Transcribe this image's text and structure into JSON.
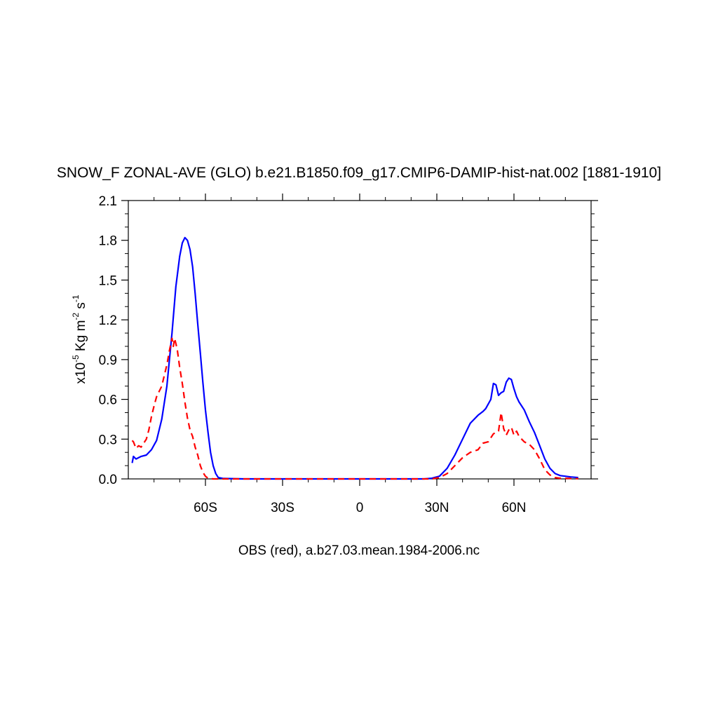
{
  "chart_data": {
    "type": "line",
    "title": "SNOW_F ZONAL-AVE (GLO) b.e21.B1850.f09_g17.CMIP6-DAMIP-hist-nat.002 [1881-1910]",
    "footer": "OBS (red), a.b27.03.mean.1984-2006.nc",
    "ylabel": {
      "prefix": "x10",
      "exp": "-5",
      "mid": " Kg m",
      "exp2": "-2",
      "mid2": " s",
      "exp3": "-1"
    },
    "xlim": [
      -90,
      90
    ],
    "ylim": [
      0,
      2.1
    ],
    "x_ticks": [
      {
        "value": -60,
        "label": "60S"
      },
      {
        "value": -30,
        "label": "30S"
      },
      {
        "value": 0,
        "label": "0"
      },
      {
        "value": 30,
        "label": "30N"
      },
      {
        "value": 60,
        "label": "60N"
      }
    ],
    "y_ticks": [
      {
        "value": 0.0,
        "label": "0.0"
      },
      {
        "value": 0.3,
        "label": "0.3"
      },
      {
        "value": 0.6,
        "label": "0.6"
      },
      {
        "value": 0.9,
        "label": "0.9"
      },
      {
        "value": 1.2,
        "label": "1.2"
      },
      {
        "value": 1.5,
        "label": "1.5"
      },
      {
        "value": 1.8,
        "label": "1.8"
      },
      {
        "value": 2.1,
        "label": "2.1"
      }
    ],
    "series": [
      {
        "color": "#0000ff",
        "dash": "solid",
        "points": [
          [
            -88.5,
            0.12
          ],
          [
            -88,
            0.17
          ],
          [
            -87,
            0.15
          ],
          [
            -85,
            0.17
          ],
          [
            -83,
            0.18
          ],
          [
            -81,
            0.22
          ],
          [
            -79,
            0.29
          ],
          [
            -77,
            0.45
          ],
          [
            -75,
            0.7
          ],
          [
            -73,
            1.1
          ],
          [
            -71.5,
            1.45
          ],
          [
            -70,
            1.68
          ],
          [
            -69,
            1.78
          ],
          [
            -68,
            1.82
          ],
          [
            -67,
            1.8
          ],
          [
            -66,
            1.73
          ],
          [
            -65,
            1.6
          ],
          [
            -64,
            1.4
          ],
          [
            -63,
            1.17
          ],
          [
            -62,
            0.95
          ],
          [
            -61,
            0.73
          ],
          [
            -60,
            0.52
          ],
          [
            -59,
            0.35
          ],
          [
            -58,
            0.2
          ],
          [
            -57,
            0.1
          ],
          [
            -56,
            0.04
          ],
          [
            -55,
            0.01
          ],
          [
            -53,
            0.003
          ],
          [
            -45,
            0.0
          ],
          [
            -30,
            0.0
          ],
          [
            0,
            0.0
          ],
          [
            25,
            0.0
          ],
          [
            28,
            0.005
          ],
          [
            31,
            0.02
          ],
          [
            34,
            0.08
          ],
          [
            37,
            0.18
          ],
          [
            40,
            0.3
          ],
          [
            43,
            0.42
          ],
          [
            46,
            0.48
          ],
          [
            48,
            0.51
          ],
          [
            49,
            0.53
          ],
          [
            51,
            0.6
          ],
          [
            52,
            0.72
          ],
          [
            53,
            0.71
          ],
          [
            54,
            0.63
          ],
          [
            55,
            0.65
          ],
          [
            56,
            0.66
          ],
          [
            57,
            0.73
          ],
          [
            58,
            0.76
          ],
          [
            59,
            0.75
          ],
          [
            60,
            0.68
          ],
          [
            61,
            0.62
          ],
          [
            62,
            0.58
          ],
          [
            63,
            0.55
          ],
          [
            64,
            0.52
          ],
          [
            66,
            0.43
          ],
          [
            68,
            0.35
          ],
          [
            70,
            0.25
          ],
          [
            72,
            0.15
          ],
          [
            74,
            0.08
          ],
          [
            76,
            0.04
          ],
          [
            78,
            0.025
          ],
          [
            80,
            0.02
          ],
          [
            82,
            0.015
          ],
          [
            85,
            0.01
          ]
        ]
      },
      {
        "color": "#ff0000",
        "dash": "dashed",
        "points": [
          [
            -88.5,
            0.29
          ],
          [
            -88,
            0.28
          ],
          [
            -87,
            0.23
          ],
          [
            -86,
            0.25
          ],
          [
            -85,
            0.24
          ],
          [
            -84,
            0.27
          ],
          [
            -83,
            0.3
          ],
          [
            -82,
            0.37
          ],
          [
            -81,
            0.47
          ],
          [
            -80,
            0.55
          ],
          [
            -79,
            0.62
          ],
          [
            -78,
            0.66
          ],
          [
            -77,
            0.7
          ],
          [
            -76,
            0.78
          ],
          [
            -75,
            0.86
          ],
          [
            -74,
            0.97
          ],
          [
            -73,
            1.06
          ],
          [
            -72.5,
            1.0
          ],
          [
            -72,
            1.06
          ],
          [
            -71,
            0.98
          ],
          [
            -70,
            0.84
          ],
          [
            -69,
            0.72
          ],
          [
            -68,
            0.58
          ],
          [
            -67,
            0.46
          ],
          [
            -66,
            0.37
          ],
          [
            -65,
            0.32
          ],
          [
            -64,
            0.24
          ],
          [
            -63,
            0.18
          ],
          [
            -62,
            0.1
          ],
          [
            -61,
            0.05
          ],
          [
            -60,
            0.02
          ],
          [
            -59,
            0.005
          ],
          [
            -57,
            0.0
          ],
          [
            -45,
            0.0
          ],
          [
            0,
            0.0
          ],
          [
            28,
            0.0
          ],
          [
            31,
            0.01
          ],
          [
            34,
            0.04
          ],
          [
            37,
            0.1
          ],
          [
            40,
            0.16
          ],
          [
            43,
            0.2
          ],
          [
            46,
            0.22
          ],
          [
            48,
            0.27
          ],
          [
            50,
            0.28
          ],
          [
            52,
            0.34
          ],
          [
            54,
            0.36
          ],
          [
            55,
            0.5
          ],
          [
            56,
            0.38
          ],
          [
            57,
            0.33
          ],
          [
            58,
            0.37
          ],
          [
            59,
            0.39
          ],
          [
            60,
            0.33
          ],
          [
            61,
            0.36
          ],
          [
            62,
            0.32
          ],
          [
            63,
            0.3
          ],
          [
            64,
            0.28
          ],
          [
            65,
            0.27
          ],
          [
            66,
            0.26
          ],
          [
            68,
            0.22
          ],
          [
            70,
            0.15
          ],
          [
            72,
            0.07
          ],
          [
            74,
            0.03
          ],
          [
            76,
            0.01
          ],
          [
            78,
            0.005
          ],
          [
            82,
            0.003
          ],
          [
            85,
            0.002
          ]
        ]
      }
    ]
  }
}
